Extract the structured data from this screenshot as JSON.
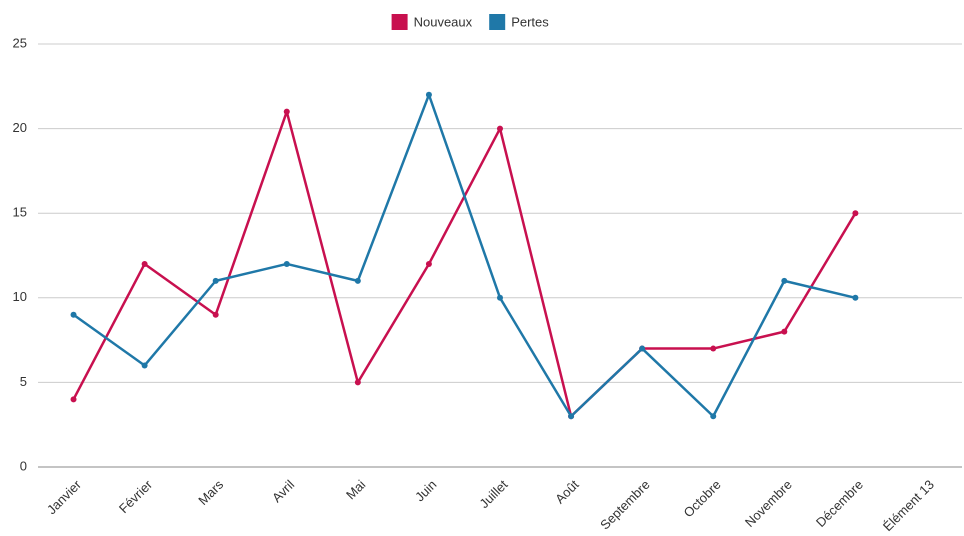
{
  "chart_data": {
    "type": "line",
    "categories": [
      "Janvier",
      "Février",
      "Mars",
      "Avril",
      "Mai",
      "Juin",
      "Juillet",
      "Août",
      "Septembre",
      "Octobre",
      "Novembre",
      "Décembre",
      "Élément 13"
    ],
    "series": [
      {
        "name": "Nouveaux",
        "color": "#c8104f",
        "values": [
          4,
          12,
          9,
          21,
          5,
          12,
          20,
          3,
          7,
          7,
          8,
          15,
          null
        ]
      },
      {
        "name": "Pertes",
        "color": "#1f78a8",
        "values": [
          9,
          6,
          11,
          12,
          11,
          22,
          10,
          3,
          7,
          3,
          11,
          10,
          null
        ]
      }
    ],
    "ylim": [
      0,
      25
    ],
    "yticks": [
      0,
      5,
      10,
      15,
      20,
      25
    ],
    "grid": true,
    "legend": "top"
  }
}
